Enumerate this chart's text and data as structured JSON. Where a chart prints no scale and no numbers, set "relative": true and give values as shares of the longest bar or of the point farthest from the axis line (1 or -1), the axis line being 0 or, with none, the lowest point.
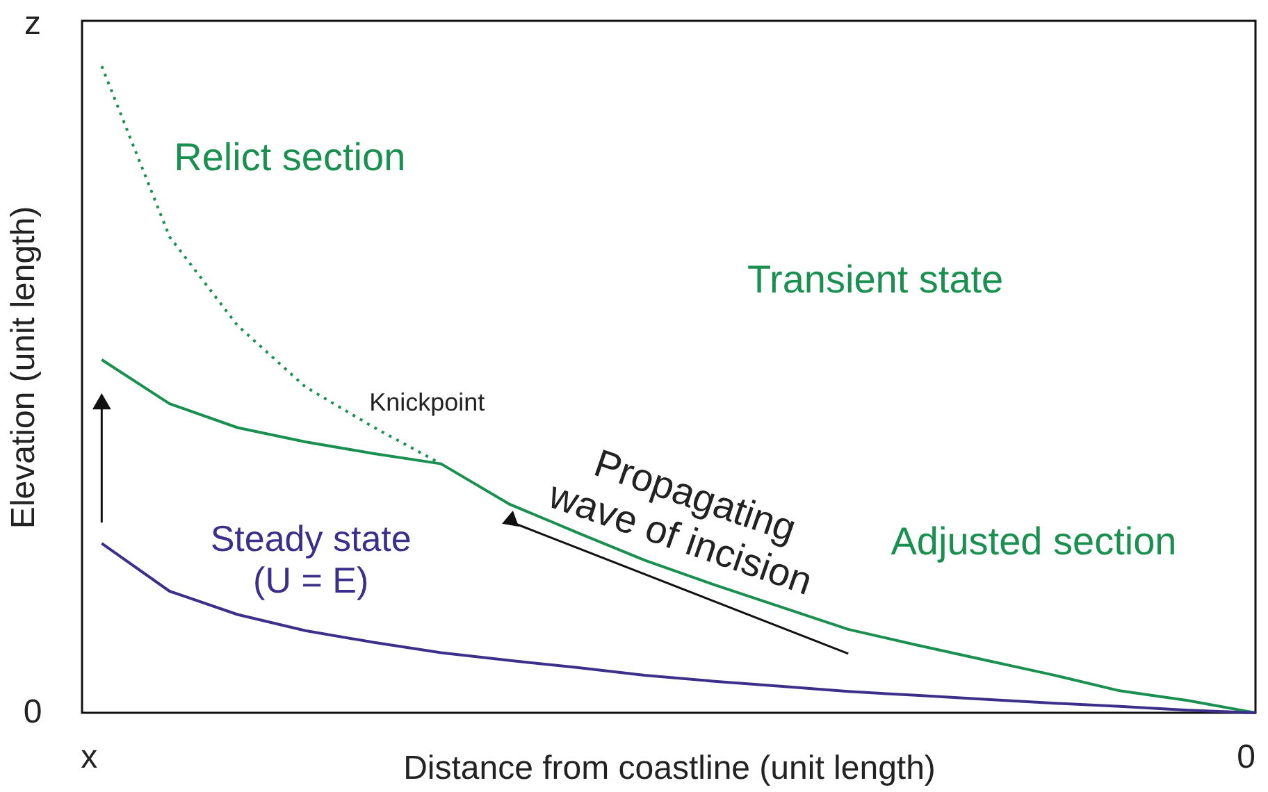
{
  "chart_data": {
    "type": "line",
    "relative": true,
    "xlabel": "Distance from coastline (unit length)",
    "ylabel": "Elevation (unit length)",
    "categories": [
      null,
      null,
      null,
      null,
      null,
      null,
      null,
      null,
      null,
      null,
      null,
      null,
      null,
      null,
      null,
      null,
      null,
      null
    ],
    "series": [
      {
        "color": "#1a9050",
        "line_style": "dotted",
        "values": [
          1,
          0.736,
          0.599,
          0.504,
          0.442,
          0.385,
          null,
          null,
          null,
          null,
          null,
          null,
          null,
          null,
          null,
          null,
          null,
          null
        ]
      },
      {
        "color": "#1a9050",
        "line_style": "solid",
        "values": [
          0.546,
          0.478,
          0.441,
          0.419,
          0.401,
          0.385,
          0.323,
          0.279,
          0.236,
          0.199,
          0.164,
          0.129,
          0.105,
          0.082,
          0.059,
          0.034,
          0.019,
          0
        ]
      },
      {
        "color": "#3b2f8a",
        "line_style": "solid",
        "values": [
          0.262,
          0.188,
          0.152,
          0.127,
          0.109,
          0.093,
          0.081,
          0.07,
          0.058,
          0.049,
          0.041,
          0.033,
          0.027,
          0.021,
          0.015,
          0.01,
          0.004,
          0
        ]
      }
    ],
    "annotations": [
      "Relict section",
      "Knickpoint",
      "Transient state",
      "Adjusted section",
      "Propagating\nwave of incision",
      "Steady state\n(U = E)",
      "z",
      "0",
      "x",
      "0"
    ]
  }
}
